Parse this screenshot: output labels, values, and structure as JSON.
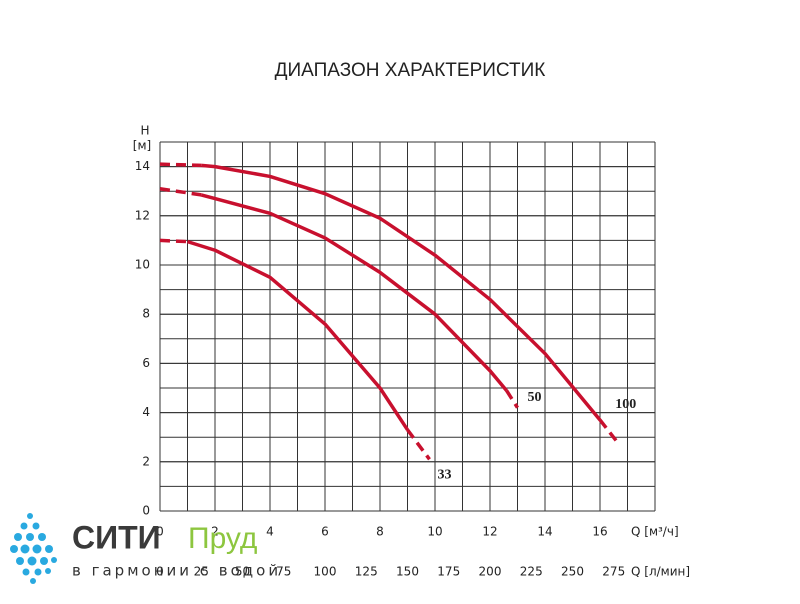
{
  "chart_data": {
    "type": "line",
    "title": "ДИАПАЗОН ХАРАКТЕРИСТИК",
    "y_label": "H",
    "y_unit": "[м]",
    "x_label": "Q [м³/ч]",
    "x2_label": "Q [л/мин]",
    "xlim": [
      0,
      18
    ],
    "xticks": [
      0,
      2,
      4,
      6,
      8,
      10,
      12,
      14,
      16
    ],
    "x2lim": [
      0,
      300
    ],
    "x2ticks": [
      0,
      25,
      50,
      75,
      100,
      125,
      150,
      175,
      200,
      225,
      250,
      275
    ],
    "ylim": [
      0,
      15
    ],
    "yticks": [
      0,
      2,
      4,
      6,
      8,
      10,
      12,
      14
    ],
    "grid": true,
    "minor_grid": true,
    "line_style": "dashed-ends",
    "series": [
      {
        "name": "100",
        "color": "#c8102e",
        "x": [
          0,
          1.5,
          2,
          4,
          6,
          8,
          10,
          12,
          14,
          16,
          16.7
        ],
        "values": [
          14.1,
          14.05,
          14,
          13.6,
          12.9,
          11.9,
          10.4,
          8.6,
          6.4,
          3.7,
          2.7
        ]
      },
      {
        "name": "50",
        "color": "#c8102e",
        "x": [
          0,
          1.5,
          2,
          4,
          6,
          8,
          10,
          12,
          12.6,
          13
        ],
        "values": [
          13.1,
          12.85,
          12.7,
          12.1,
          11.1,
          9.7,
          8.0,
          5.7,
          4.9,
          4.2
        ]
      },
      {
        "name": "33",
        "color": "#c8102e",
        "x": [
          0,
          1,
          2,
          4,
          6,
          8,
          9,
          9.8
        ],
        "values": [
          11,
          10.95,
          10.6,
          9.5,
          7.6,
          5.0,
          3.3,
          2.1
        ]
      }
    ]
  },
  "logo": {
    "word1": "СИТИ",
    "word2": "Пруд",
    "slogan": "в гармонии с водой"
  }
}
